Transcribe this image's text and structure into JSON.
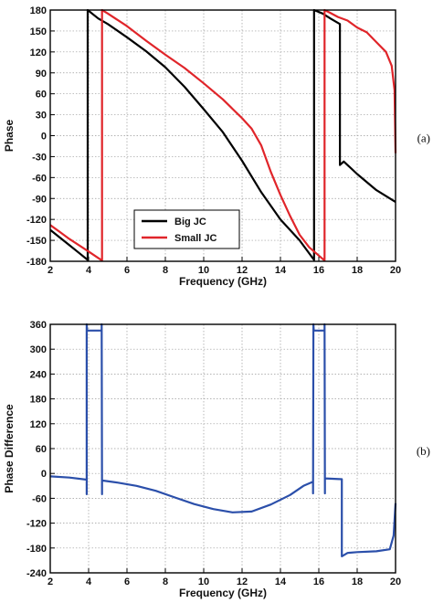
{
  "chart_data": [
    {
      "type": "line",
      "panel_label": "(a)",
      "xlabel": "Frequency (GHz)",
      "ylabel": "Phase",
      "xlim": [
        2,
        20
      ],
      "ylim": [
        -180,
        180
      ],
      "xticks": [
        2,
        4,
        6,
        8,
        10,
        12,
        14,
        16,
        18,
        20
      ],
      "yticks": [
        180,
        150,
        120,
        90,
        60,
        30,
        0,
        -30,
        -60,
        -90,
        -120,
        -150,
        -180
      ],
      "grid": true,
      "legend_position": "bottom-center",
      "series": [
        {
          "name": "Big JC",
          "color": "#000000",
          "points": [
            [
              2,
              -135
            ],
            [
              2.5,
              -146
            ],
            [
              3,
              -157
            ],
            [
              3.5,
              -168
            ],
            [
              3.95,
              -178
            ],
            [
              3.95,
              180
            ],
            [
              4.5,
              168
            ],
            [
              5,
              160
            ],
            [
              6,
              141
            ],
            [
              7,
              121
            ],
            [
              8,
              98
            ],
            [
              9,
              70
            ],
            [
              10,
              38
            ],
            [
              11,
              5
            ],
            [
              12,
              -36
            ],
            [
              13,
              -81
            ],
            [
              14,
              -120
            ],
            [
              15,
              -150
            ],
            [
              15.75,
              -178
            ],
            [
              15.75,
              180
            ],
            [
              16.2,
              175
            ],
            [
              16.6,
              168
            ],
            [
              17.1,
              160
            ],
            [
              17.1,
              150
            ],
            [
              17.1,
              -42
            ],
            [
              17.3,
              -37
            ],
            [
              18,
              -55
            ],
            [
              19,
              -78
            ],
            [
              20,
              -95
            ]
          ]
        },
        {
          "name": "Small JC",
          "color": "#e0252a",
          "points": [
            [
              2,
              -128
            ],
            [
              2.5,
              -138
            ],
            [
              3,
              -148
            ],
            [
              3.5,
              -157
            ],
            [
              4,
              -166
            ],
            [
              4.7,
              -179
            ],
            [
              4.7,
              180
            ],
            [
              5,
              175
            ],
            [
              6,
              157
            ],
            [
              7,
              136
            ],
            [
              8,
              116
            ],
            [
              9,
              97
            ],
            [
              10,
              75
            ],
            [
              11,
              52
            ],
            [
              12,
              25
            ],
            [
              12.5,
              10
            ],
            [
              13,
              -14
            ],
            [
              13.5,
              -52
            ],
            [
              14,
              -85
            ],
            [
              14.5,
              -115
            ],
            [
              15,
              -142
            ],
            [
              15.5,
              -160
            ],
            [
              16.3,
              -179
            ],
            [
              16.3,
              180
            ],
            [
              16.6,
              176
            ],
            [
              17,
              170
            ],
            [
              17.5,
              165
            ],
            [
              18,
              155
            ],
            [
              18.5,
              148
            ],
            [
              19,
              134
            ],
            [
              19.5,
              120
            ],
            [
              19.8,
              100
            ],
            [
              19.95,
              65
            ],
            [
              20,
              -25
            ]
          ]
        }
      ]
    },
    {
      "type": "line",
      "panel_label": "(b)",
      "xlabel": "Frequency (GHz)",
      "ylabel": "Phase Difference",
      "xlim": [
        2,
        20
      ],
      "ylim": [
        -240,
        360
      ],
      "xticks": [
        2,
        4,
        6,
        8,
        10,
        12,
        14,
        16,
        18,
        20
      ],
      "yticks": [
        360,
        300,
        240,
        180,
        120,
        60,
        0,
        -60,
        -120,
        -180,
        -240
      ],
      "grid": true,
      "series": [
        {
          "color": "#2b4faa",
          "points": [
            [
              2,
              -7
            ],
            [
              3,
              -10
            ],
            [
              3.9,
              -15
            ],
            [
              3.9,
              -50
            ],
            [
              3.9,
              360
            ],
            [
              3.92,
              345
            ],
            [
              4.68,
              345
            ],
            [
              4.68,
              360
            ],
            [
              4.7,
              -50
            ],
            [
              4.7,
              -17
            ],
            [
              5.5,
              -22
            ],
            [
              6.5,
              -30
            ],
            [
              7.5,
              -42
            ],
            [
              8.5,
              -58
            ],
            [
              9.5,
              -74
            ],
            [
              10.5,
              -86
            ],
            [
              11.5,
              -94
            ],
            [
              12.5,
              -92
            ],
            [
              13.5,
              -75
            ],
            [
              14.5,
              -52
            ],
            [
              15.2,
              -30
            ],
            [
              15.7,
              -20
            ],
            [
              15.7,
              -48
            ],
            [
              15.72,
              360
            ],
            [
              15.74,
              345
            ],
            [
              16.3,
              345
            ],
            [
              16.3,
              360
            ],
            [
              16.32,
              -48
            ],
            [
              16.32,
              -12
            ],
            [
              17.2,
              -14
            ],
            [
              17.2,
              -200
            ],
            [
              17.5,
              -192
            ],
            [
              18,
              -190
            ],
            [
              19,
              -188
            ],
            [
              19.7,
              -183
            ],
            [
              19.9,
              -150
            ],
            [
              20,
              -72
            ]
          ]
        }
      ]
    }
  ]
}
